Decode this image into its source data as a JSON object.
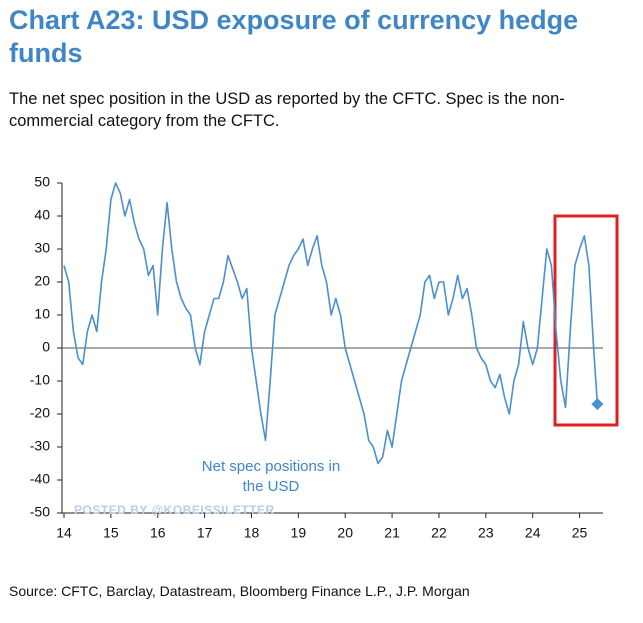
{
  "chart_data": {
    "type": "line",
    "title": "Chart A23: USD exposure of currency hedge funds",
    "subtitle": "The net spec position in the USD as reported by the CFTC. Spec is the non-commercial category from the CFTC.",
    "source": "Source: CFTC, Barclay, Datastream, Bloomberg Finance L.P., J.P. Morgan",
    "watermark": "POSTED BY @KOBEISSILETTER",
    "x": [
      14.0,
      14.1,
      14.2,
      14.3,
      14.4,
      14.5,
      14.6,
      14.7,
      14.8,
      14.9,
      15.0,
      15.1,
      15.2,
      15.3,
      15.4,
      15.5,
      15.6,
      15.7,
      15.8,
      15.9,
      16.0,
      16.1,
      16.2,
      16.3,
      16.4,
      16.5,
      16.6,
      16.7,
      16.8,
      16.9,
      17.0,
      17.1,
      17.2,
      17.3,
      17.4,
      17.5,
      17.6,
      17.7,
      17.8,
      17.9,
      18.0,
      18.1,
      18.2,
      18.3,
      18.4,
      18.5,
      18.6,
      18.7,
      18.8,
      18.9,
      19.0,
      19.1,
      19.2,
      19.3,
      19.4,
      19.5,
      19.6,
      19.7,
      19.8,
      19.9,
      20.0,
      20.1,
      20.2,
      20.3,
      20.4,
      20.5,
      20.6,
      20.7,
      20.8,
      20.9,
      21.0,
      21.1,
      21.2,
      21.3,
      21.4,
      21.5,
      21.6,
      21.7,
      21.8,
      21.9,
      22.0,
      22.1,
      22.2,
      22.3,
      22.4,
      22.5,
      22.6,
      22.7,
      22.8,
      22.9,
      23.0,
      23.1,
      23.2,
      23.3,
      23.4,
      23.5,
      23.6,
      23.7,
      23.8,
      23.9,
      24.0,
      24.1,
      24.2,
      24.3,
      24.4,
      24.5,
      24.6,
      24.7,
      24.8,
      24.9,
      25.0,
      25.1,
      25.2,
      25.3,
      25.38
    ],
    "series": [
      {
        "name": "Net spec positions in the USD",
        "color": "#4a90d0",
        "values": [
          25,
          20,
          5,
          -3,
          -5,
          5,
          10,
          5,
          20,
          30,
          45,
          50,
          47,
          40,
          45,
          38,
          33,
          30,
          22,
          25,
          10,
          30,
          44,
          30,
          20,
          15,
          12,
          10,
          0,
          -5,
          5,
          10,
          15,
          15,
          20,
          28,
          24,
          20,
          15,
          18,
          0,
          -10,
          -20,
          -28,
          -10,
          10,
          15,
          20,
          25,
          28,
          30,
          33,
          25,
          30,
          34,
          25,
          20,
          10,
          15,
          10,
          0,
          -5,
          -10,
          -15,
          -20,
          -28,
          -30,
          -35,
          -33,
          -25,
          -30,
          -20,
          -10,
          -5,
          0,
          5,
          10,
          20,
          22,
          15,
          20,
          20,
          10,
          15,
          22,
          15,
          18,
          10,
          0,
          -3,
          -5,
          -10,
          -12,
          -8,
          -15,
          -20,
          -10,
          -5,
          8,
          0,
          -5,
          0,
          15,
          30,
          25,
          5,
          -10,
          -18,
          5,
          25,
          30,
          34,
          25,
          0,
          -17
        ]
      }
    ],
    "xlim": [
      14,
      25.5
    ],
    "ylim": [
      -50,
      50
    ],
    "xticks": [
      14,
      15,
      16,
      17,
      18,
      19,
      20,
      21,
      22,
      23,
      24,
      25
    ],
    "yticks": [
      -50,
      -40,
      -30,
      -20,
      -10,
      0,
      10,
      20,
      30,
      40,
      50
    ]
  }
}
